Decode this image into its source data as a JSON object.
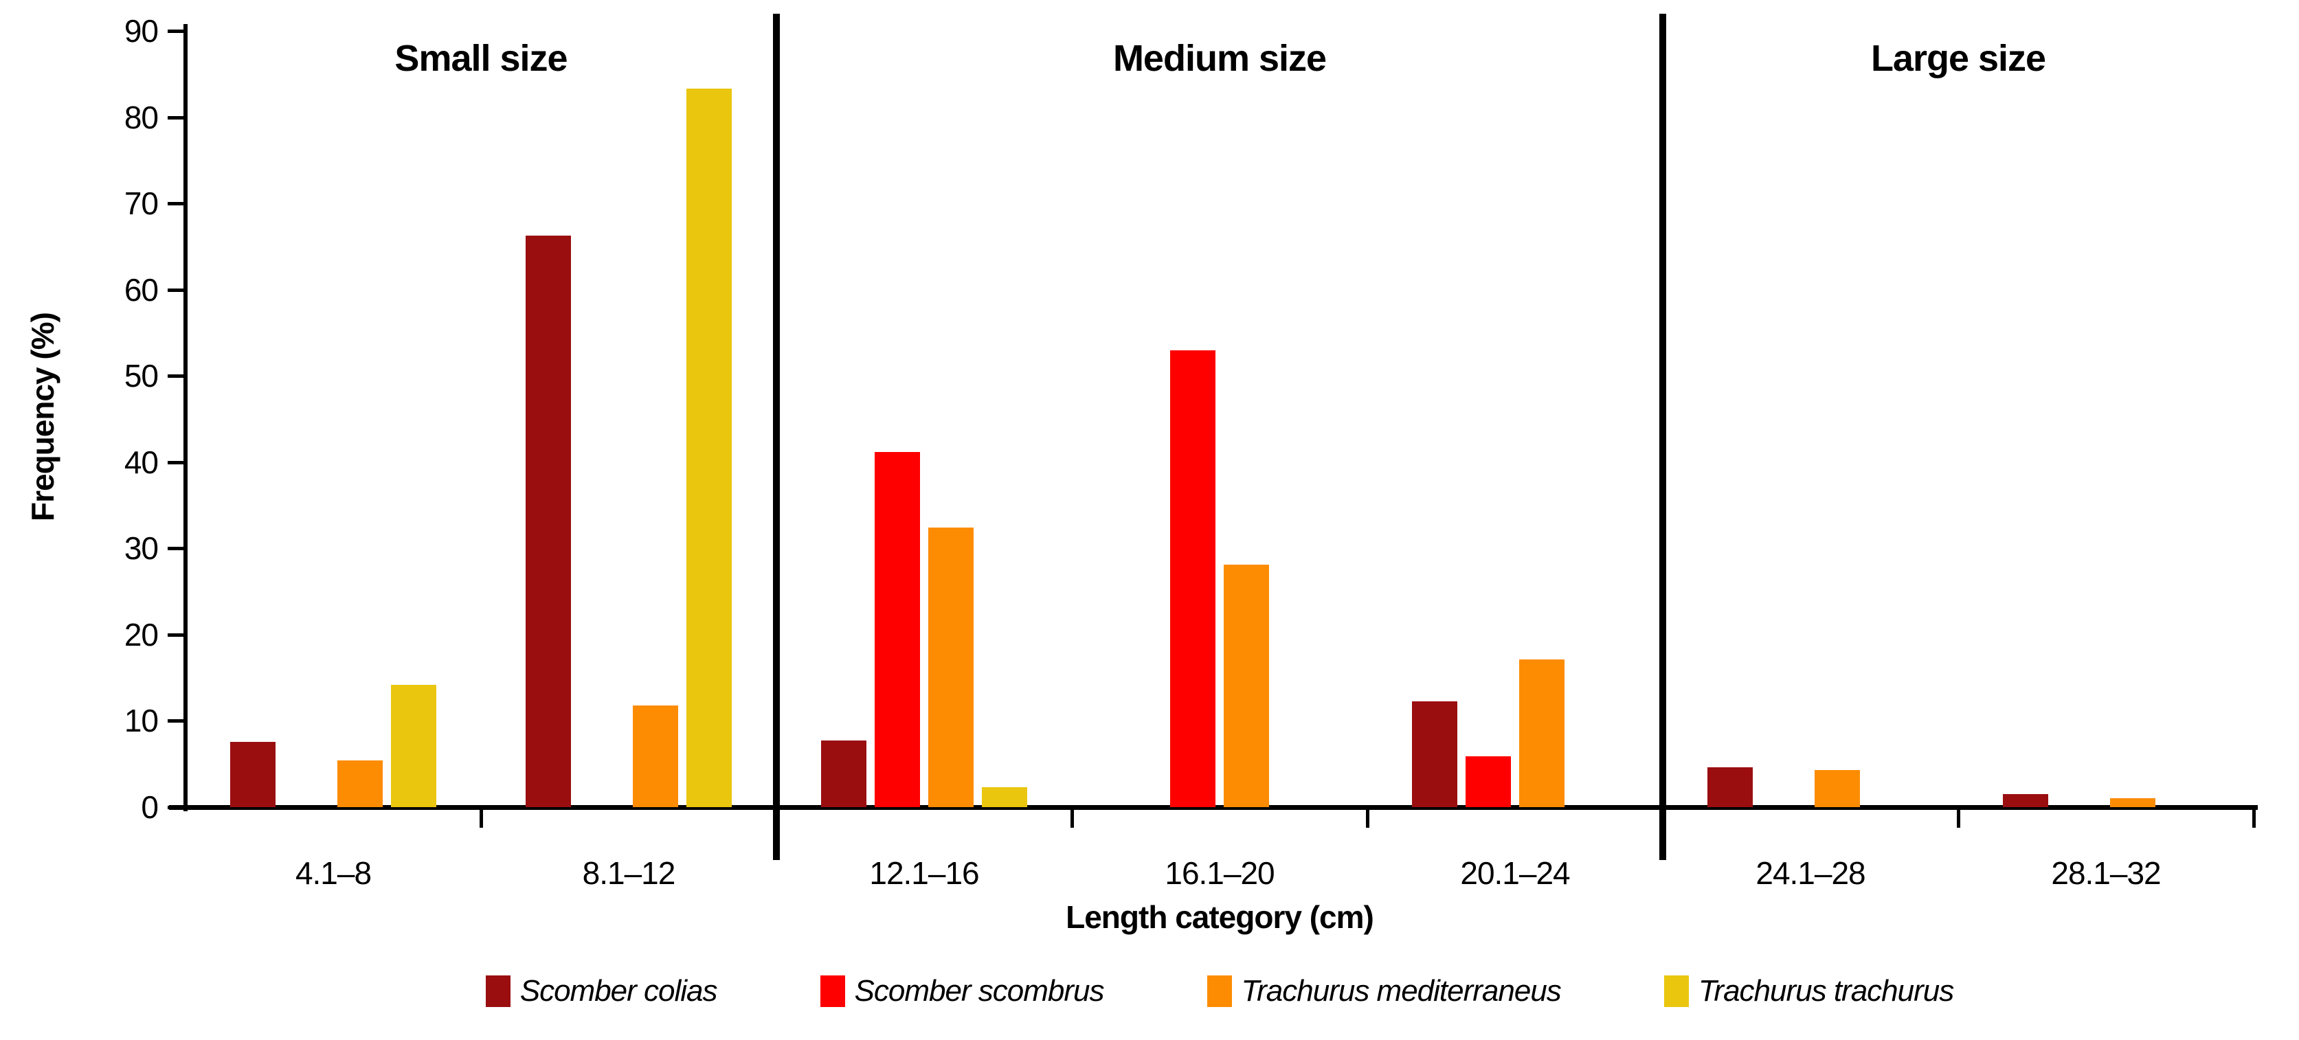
{
  "chart_data": {
    "type": "bar",
    "title": "",
    "xlabel": "Length category (cm)",
    "ylabel": "Frequency (%)",
    "ylim": [
      0,
      90
    ],
    "ytick_step": 10,
    "ytick_labels": [
      "0",
      "10",
      "20",
      "30",
      "40",
      "50",
      "60",
      "70",
      "80",
      "90"
    ],
    "grid": false,
    "legend_position": "bottom",
    "categories": [
      "4.1–8",
      "8.1–12",
      "12.1–16",
      "16.1–20",
      "20.1–24",
      "24.1–28",
      "28.1–32"
    ],
    "series": [
      {
        "name": "Scomber colias",
        "color": "#9A0E10",
        "values": [
          7.6,
          66.3,
          7.7,
          0,
          12.3,
          4.6,
          1.5
        ]
      },
      {
        "name": "Scomber scombrus",
        "color": "#FE0000",
        "values": [
          0,
          0,
          41.2,
          53.0,
          5.9,
          0,
          0
        ]
      },
      {
        "name": "Trachurus mediterraneus",
        "color": "#FD8C03",
        "values": [
          5.4,
          11.8,
          32.4,
          28.1,
          17.1,
          4.3,
          1.0
        ]
      },
      {
        "name": "Trachurus trachurus",
        "color": "#EAC60E",
        "values": [
          14.2,
          83.3,
          2.3,
          0,
          0,
          0,
          0
        ]
      }
    ],
    "sections": [
      {
        "label": "Small size",
        "from_category": 0,
        "to_category": 1
      },
      {
        "label": "Medium size",
        "from_category": 2,
        "to_category": 4
      },
      {
        "label": "Large size",
        "from_category": 5,
        "to_category": 6
      }
    ],
    "divider_color": "#000000",
    "axis_color": "#000000"
  }
}
